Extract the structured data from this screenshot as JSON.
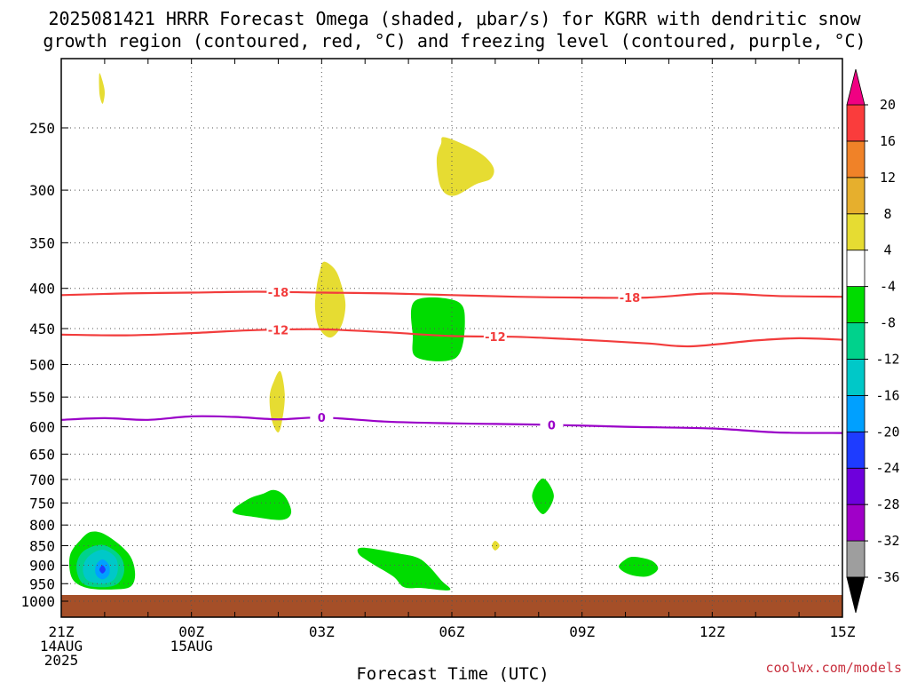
{
  "chart_data": {
    "type": "heatmap",
    "title_lines": [
      "2025081421 HRRR Forecast Omega (shaded, μbar/s) for KGRR with dendritic snow",
      "growth region (contoured, red, °C) and freezing level (contoured, purple, °C)"
    ],
    "xlabel": "Forecast Time (UTC)",
    "watermark": "coolwx.com/models",
    "x_ticks": [
      {
        "hour": 0,
        "lines": [
          "21Z",
          "14AUG",
          "2025"
        ]
      },
      {
        "hour": 3,
        "lines": [
          "00Z",
          "15AUG"
        ]
      },
      {
        "hour": 6,
        "lines": [
          "03Z"
        ]
      },
      {
        "hour": 9,
        "lines": [
          "06Z"
        ]
      },
      {
        "hour": 12,
        "lines": [
          "09Z"
        ]
      },
      {
        "hour": 15,
        "lines": [
          "12Z"
        ]
      },
      {
        "hour": 18,
        "lines": [
          "15Z"
        ]
      }
    ],
    "xlim_hours": [
      0,
      18
    ],
    "y_axis": {
      "label": "",
      "units": "hPa",
      "scale": "log",
      "inverted": true,
      "range": [
        210,
        1040
      ]
    },
    "y_ticks": [
      250,
      300,
      350,
      400,
      450,
      500,
      550,
      600,
      650,
      700,
      750,
      800,
      850,
      900,
      950,
      1000
    ],
    "grid": true,
    "colorbar": {
      "units": "μbar/s",
      "levels": [
        -36,
        -32,
        -28,
        -24,
        -20,
        -16,
        -12,
        -8,
        -4,
        4,
        8,
        12,
        16,
        20
      ],
      "colors": [
        "#000000",
        "#9e9e9e",
        "#a000c8",
        "#6e00dc",
        "#1e3cff",
        "#00a0ff",
        "#00c8c8",
        "#00d28c",
        "#00dc00",
        "#ffffff",
        "#e6dc32",
        "#e6af2d",
        "#f08228",
        "#fa3c3c",
        "#f00082"
      ]
    },
    "omega_shaded": [
      {
        "level": "4 to 8",
        "color": "#e6dc32",
        "points": [
          [
            0.88,
            213
          ],
          [
            0.98,
            221
          ],
          [
            1.0,
            227
          ],
          [
            0.95,
            233
          ],
          [
            0.88,
            226
          ]
        ]
      },
      {
        "level": "4 to 8",
        "color": "#e6dc32",
        "points": [
          [
            8.85,
            257
          ],
          [
            9.6,
            268
          ],
          [
            9.95,
            280
          ],
          [
            9.9,
            290
          ],
          [
            9.55,
            295
          ],
          [
            9.05,
            305
          ],
          [
            8.75,
            298
          ],
          [
            8.65,
            275
          ],
          [
            8.75,
            262
          ]
        ]
      },
      {
        "level": "4 to 8",
        "color": "#e6dc32",
        "points": [
          [
            6.05,
            370
          ],
          [
            6.3,
            378
          ],
          [
            6.45,
            395
          ],
          [
            6.55,
            420
          ],
          [
            6.45,
            447
          ],
          [
            6.2,
            462
          ],
          [
            5.95,
            450
          ],
          [
            5.85,
            425
          ],
          [
            5.88,
            400
          ],
          [
            5.95,
            382
          ]
        ]
      },
      {
        "level": "4 to 8",
        "color": "#e6dc32",
        "points": [
          [
            5.05,
            510
          ],
          [
            5.15,
            545
          ],
          [
            5.1,
            585
          ],
          [
            5.0,
            610
          ],
          [
            4.85,
            588
          ],
          [
            4.8,
            550
          ],
          [
            4.9,
            525
          ]
        ]
      },
      {
        "level": "4 to 8",
        "color": "#e6dc32",
        "points": [
          [
            10.0,
            838
          ],
          [
            10.1,
            850
          ],
          [
            10.0,
            862
          ],
          [
            9.92,
            850
          ]
        ]
      },
      {
        "level": "-4 to -8",
        "color": "#00dc00",
        "points": [
          [
            8.15,
            415
          ],
          [
            9.1,
            415
          ],
          [
            9.3,
            440
          ],
          [
            9.1,
            490
          ],
          [
            8.2,
            490
          ],
          [
            8.1,
            460
          ]
        ]
      },
      {
        "level": "-4 to -8",
        "color": "#00dc00",
        "points": [
          [
            4.9,
            722
          ],
          [
            5.15,
            735
          ],
          [
            5.3,
            770
          ],
          [
            5.1,
            788
          ],
          [
            4.5,
            782
          ],
          [
            3.95,
            770
          ],
          [
            4.3,
            742
          ],
          [
            4.65,
            730
          ]
        ]
      },
      {
        "level": "-4 to -8",
        "color": "#00dc00",
        "points": [
          [
            11.1,
            698
          ],
          [
            11.35,
            735
          ],
          [
            11.1,
            775
          ],
          [
            10.85,
            735
          ]
        ]
      },
      {
        "level": "-4 to -8",
        "color": "#00dc00",
        "points": [
          [
            6.95,
            855
          ],
          [
            7.8,
            870
          ],
          [
            8.2,
            880
          ],
          [
            8.45,
            900
          ],
          [
            8.75,
            940
          ],
          [
            8.95,
            968
          ],
          [
            8.3,
            962
          ],
          [
            7.9,
            960
          ],
          [
            7.65,
            930
          ],
          [
            7.15,
            895
          ],
          [
            6.85,
            870
          ]
        ]
      },
      {
        "level": "-4 to -8",
        "color": "#00dc00",
        "points": [
          [
            13.2,
            878
          ],
          [
            13.6,
            888
          ],
          [
            13.75,
            910
          ],
          [
            13.5,
            930
          ],
          [
            13.1,
            925
          ],
          [
            12.85,
            905
          ],
          [
            13.0,
            885
          ]
        ]
      },
      {
        "level": "-4 to -8",
        "color": "#00dc00",
        "points": [
          [
            0.7,
            816
          ],
          [
            1.05,
            825
          ],
          [
            1.55,
            870
          ],
          [
            1.7,
            920
          ],
          [
            1.6,
            958
          ],
          [
            1.2,
            966
          ],
          [
            0.6,
            962
          ],
          [
            0.25,
            935
          ],
          [
            0.2,
            875
          ],
          [
            0.45,
            835
          ]
        ]
      },
      {
        "level": "-8 to -12",
        "color": "#00d28c",
        "points": [
          [
            0.95,
            848
          ],
          [
            1.35,
            875
          ],
          [
            1.45,
            915
          ],
          [
            1.3,
            950
          ],
          [
            0.95,
            960
          ],
          [
            0.5,
            950
          ],
          [
            0.35,
            905
          ],
          [
            0.5,
            865
          ]
        ]
      },
      {
        "level": "-12 to -16",
        "color": "#00c8c8",
        "points": [
          [
            0.95,
            860
          ],
          [
            1.25,
            880
          ],
          [
            1.3,
            915
          ],
          [
            1.2,
            940
          ],
          [
            0.95,
            950
          ],
          [
            0.6,
            940
          ],
          [
            0.5,
            910
          ],
          [
            0.62,
            878
          ]
        ]
      },
      {
        "level": "-16 to -20",
        "color": "#00a0ff",
        "points": [
          [
            0.95,
            885
          ],
          [
            1.1,
            900
          ],
          [
            1.1,
            925
          ],
          [
            0.95,
            938
          ],
          [
            0.8,
            925
          ],
          [
            0.8,
            900
          ]
        ]
      },
      {
        "level": "-20 to -24",
        "color": "#1e3cff",
        "points": [
          [
            0.95,
            900
          ],
          [
            1.02,
            912
          ],
          [
            0.95,
            922
          ],
          [
            0.88,
            912
          ]
        ]
      }
    ],
    "contours": [
      {
        "name": "-18",
        "value": -18,
        "color": "#f23c3c",
        "labels": [
          {
            "hour": 5.0
          },
          {
            "hour": 13.1
          }
        ],
        "points": [
          [
            0,
            408
          ],
          [
            1.5,
            406
          ],
          [
            3,
            405
          ],
          [
            4.5,
            404
          ],
          [
            6,
            405
          ],
          [
            7.5,
            406
          ],
          [
            9,
            408
          ],
          [
            10.5,
            410
          ],
          [
            12,
            411
          ],
          [
            13.5,
            411
          ],
          [
            15,
            406
          ],
          [
            16.5,
            409
          ],
          [
            18,
            410
          ]
        ]
      },
      {
        "name": "-12",
        "value": -12,
        "color": "#f23c3c",
        "labels": [
          {
            "hour": 5.0
          },
          {
            "hour": 10.0
          }
        ],
        "points": [
          [
            0,
            458
          ],
          [
            1.5,
            459
          ],
          [
            3,
            456
          ],
          [
            4.5,
            452
          ],
          [
            6,
            451
          ],
          [
            7.5,
            455
          ],
          [
            9,
            460
          ],
          [
            10.5,
            461
          ],
          [
            12,
            465
          ],
          [
            13.5,
            470
          ],
          [
            14.5,
            474
          ],
          [
            16,
            466
          ],
          [
            17,
            463
          ],
          [
            18,
            465
          ]
        ]
      },
      {
        "name": "0",
        "value": 0,
        "color": "#9a00c8",
        "labels": [
          {
            "hour": 6.0
          },
          {
            "hour": 11.3
          }
        ],
        "points": [
          [
            0,
            588
          ],
          [
            1,
            585
          ],
          [
            2,
            588
          ],
          [
            3,
            582
          ],
          [
            4,
            583
          ],
          [
            5,
            587
          ],
          [
            6,
            584
          ],
          [
            7.5,
            591
          ],
          [
            9,
            594
          ],
          [
            10,
            595
          ],
          [
            11.5,
            597
          ],
          [
            13,
            600
          ],
          [
            15,
            603
          ],
          [
            16.5,
            610
          ],
          [
            18,
            611
          ]
        ]
      }
    ],
    "surface": {
      "color": "#a54f28",
      "top_hpa": 982
    }
  }
}
